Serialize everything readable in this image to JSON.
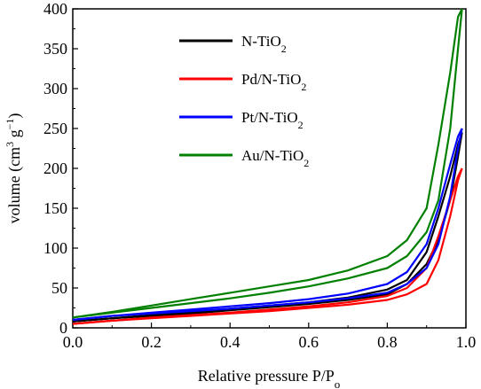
{
  "chart_data": {
    "type": "line",
    "xlabel": {
      "main": "Relative pressure P/P",
      "sub": "o"
    },
    "ylabel": {
      "prefix": "volume (cm",
      "sup1": "3",
      "mid": " g",
      "sup2": "−1",
      "suffix": ")"
    },
    "xlim": [
      0.0,
      1.0
    ],
    "ylim": [
      0,
      400
    ],
    "x_ticks": [
      "0.0",
      "0.2",
      "0.4",
      "0.6",
      "0.8",
      "1.0"
    ],
    "y_ticks": [
      "0",
      "50",
      "100",
      "150",
      "200",
      "250",
      "300",
      "350",
      "400"
    ],
    "grid": false,
    "legend_position": "top-left",
    "series": [
      {
        "name": {
          "main": "N-TiO",
          "sub": "2"
        },
        "color": "#000000",
        "adsorption": {
          "x": [
            0.0,
            0.1,
            0.2,
            0.3,
            0.4,
            0.5,
            0.6,
            0.7,
            0.8,
            0.85,
            0.9,
            0.93,
            0.96,
            0.98,
            0.99
          ],
          "y": [
            8,
            12,
            15,
            18,
            22,
            26,
            30,
            35,
            42,
            55,
            80,
            110,
            160,
            215,
            245
          ]
        },
        "desorption": {
          "x": [
            0.99,
            0.98,
            0.96,
            0.93,
            0.9,
            0.85,
            0.8,
            0.7,
            0.6,
            0.5,
            0.4,
            0.3,
            0.2,
            0.1,
            0.0
          ],
          "y": [
            245,
            230,
            190,
            140,
            95,
            60,
            48,
            38,
            32,
            28,
            24,
            20,
            16,
            12,
            8
          ]
        }
      },
      {
        "name": {
          "main": "Pd/N-TiO",
          "sub": "2"
        },
        "color": "#ff0000",
        "adsorption": {
          "x": [
            0.0,
            0.1,
            0.2,
            0.3,
            0.4,
            0.5,
            0.6,
            0.7,
            0.8,
            0.85,
            0.9,
            0.93,
            0.96,
            0.98,
            0.99
          ],
          "y": [
            5,
            9,
            12,
            15,
            18,
            21,
            25,
            29,
            35,
            42,
            55,
            85,
            140,
            185,
            200
          ]
        },
        "desorption": {
          "x": [
            0.99,
            0.98,
            0.96,
            0.93,
            0.9,
            0.85,
            0.8,
            0.7,
            0.6,
            0.5,
            0.4,
            0.3,
            0.2,
            0.1,
            0.0
          ],
          "y": [
            200,
            190,
            160,
            115,
            75,
            50,
            40,
            32,
            27,
            23,
            19,
            16,
            13,
            9,
            5
          ]
        }
      },
      {
        "name": {
          "main": "Pt/N-TiO",
          "sub": "2"
        },
        "color": "#0000ff",
        "adsorption": {
          "x": [
            0.0,
            0.1,
            0.2,
            0.3,
            0.4,
            0.5,
            0.6,
            0.7,
            0.8,
            0.85,
            0.9,
            0.93,
            0.96,
            0.98,
            0.99
          ],
          "y": [
            10,
            15,
            18,
            21,
            24,
            28,
            32,
            37,
            44,
            55,
            75,
            105,
            165,
            225,
            250
          ]
        },
        "desorption": {
          "x": [
            0.99,
            0.98,
            0.96,
            0.93,
            0.9,
            0.85,
            0.8,
            0.7,
            0.6,
            0.5,
            0.4,
            0.3,
            0.2,
            0.1,
            0.0
          ],
          "y": [
            250,
            240,
            205,
            150,
            105,
            70,
            55,
            43,
            36,
            31,
            27,
            23,
            19,
            15,
            10
          ]
        }
      },
      {
        "name": {
          "main": "Au/N-TiO",
          "sub": "2"
        },
        "color": "#008000",
        "adsorption": {
          "x": [
            0.0,
            0.1,
            0.2,
            0.3,
            0.4,
            0.5,
            0.6,
            0.7,
            0.8,
            0.85,
            0.9,
            0.93,
            0.96,
            0.98,
            0.99
          ],
          "y": [
            13,
            19,
            25,
            31,
            37,
            44,
            52,
            62,
            75,
            90,
            120,
            160,
            250,
            350,
            400
          ]
        },
        "desorption": {
          "x": [
            0.99,
            0.98,
            0.96,
            0.93,
            0.9,
            0.85,
            0.8,
            0.7,
            0.6,
            0.5,
            0.4,
            0.3,
            0.2,
            0.1,
            0.0
          ],
          "y": [
            400,
            390,
            320,
            230,
            150,
            110,
            90,
            72,
            60,
            52,
            44,
            36,
            28,
            20,
            13
          ]
        }
      }
    ]
  }
}
